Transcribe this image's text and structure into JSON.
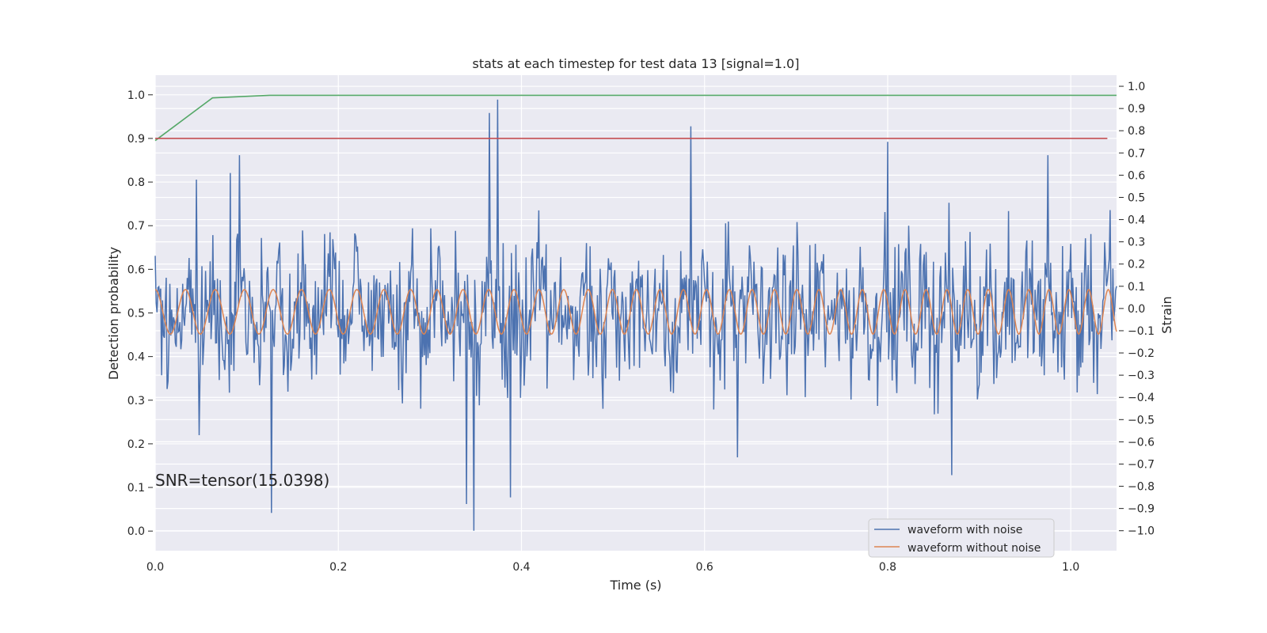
{
  "chart_data": {
    "type": "line",
    "title": "stats at each timestep for test data 13 [signal=1.0]",
    "xlabel": "Time (s)",
    "ylabel": "Detection probability",
    "y2label": "Strain",
    "xlim": [
      0.0,
      1.05
    ],
    "ylim": [
      -0.045,
      1.045
    ],
    "y2lim": [
      -1.09,
      1.05
    ],
    "xticks": [
      "0.0",
      "0.2",
      "0.4",
      "0.6",
      "0.8",
      "1.0"
    ],
    "yticks": [
      "0.0",
      "0.1",
      "0.2",
      "0.3",
      "0.4",
      "0.5",
      "0.6",
      "0.7",
      "0.8",
      "0.9",
      "1.0"
    ],
    "y2ticks": [
      "−1.0",
      "−0.9",
      "−0.8",
      "−0.7",
      "−0.6",
      "−0.5",
      "−0.4",
      "−0.3",
      "−0.2",
      "−0.1",
      "0.0",
      "0.1",
      "0.2",
      "0.3",
      "0.4",
      "0.5",
      "0.6",
      "0.7",
      "0.8",
      "0.9",
      "1.0"
    ],
    "grid": true,
    "legend_position": "lower-right",
    "annotation": "SNR=tensor(15.0398)",
    "probability_series": [
      {
        "color": "#55a868",
        "x": [
          0.0,
          0.0625,
          0.125,
          1.05
        ],
        "y": [
          0.895,
          0.993,
          0.999,
          0.999
        ]
      },
      {
        "color": "#c44e52",
        "x": [
          0.0,
          1.04
        ],
        "y": [
          0.9,
          0.9
        ]
      }
    ],
    "strain_series": [
      {
        "name": "waveform with noise",
        "color": "#4c72b0",
        "x_range": [
          0.0,
          1.05
        ],
        "noise_amplitude": 0.22,
        "spikes": [
          [
            0.045,
            0.58
          ],
          [
            0.048,
            -0.57
          ],
          [
            0.082,
            0.61
          ],
          [
            0.092,
            0.69
          ],
          [
            0.127,
            -0.92
          ],
          [
            0.34,
            -0.88
          ],
          [
            0.348,
            -1.0
          ],
          [
            0.365,
            0.88
          ],
          [
            0.374,
            0.94
          ],
          [
            0.388,
            -0.85
          ],
          [
            0.585,
            0.82
          ],
          [
            0.636,
            -0.67
          ],
          [
            0.8,
            0.75
          ],
          [
            0.87,
            -0.75
          ],
          [
            0.975,
            0.69
          ]
        ]
      },
      {
        "name": "waveform without noise",
        "color": "#dd8452",
        "amplitude": 0.1,
        "offset": -0.015,
        "freq_start_hz": 30,
        "freq_end_hz": 47
      }
    ]
  }
}
